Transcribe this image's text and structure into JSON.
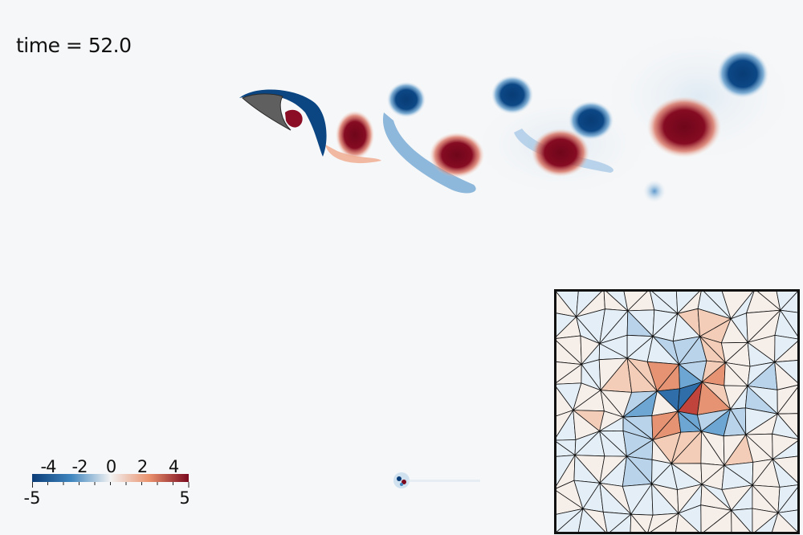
{
  "time_label": "time = 52.0",
  "colorbar": {
    "ticks_top": [
      "-4",
      "-2",
      "0",
      "2",
      "4"
    ],
    "min_label": "-5",
    "max_label": "5",
    "range": [
      -5,
      5
    ],
    "colors": [
      "#0b3d78",
      "#3f86bf",
      "#f2f2f2",
      "#e9906c",
      "#7a0a1e"
    ]
  },
  "colors": {
    "background": "#f6f7f8",
    "negative": "#083c75",
    "positive": "#7c0a1f",
    "body": "#5f5f5f"
  }
}
